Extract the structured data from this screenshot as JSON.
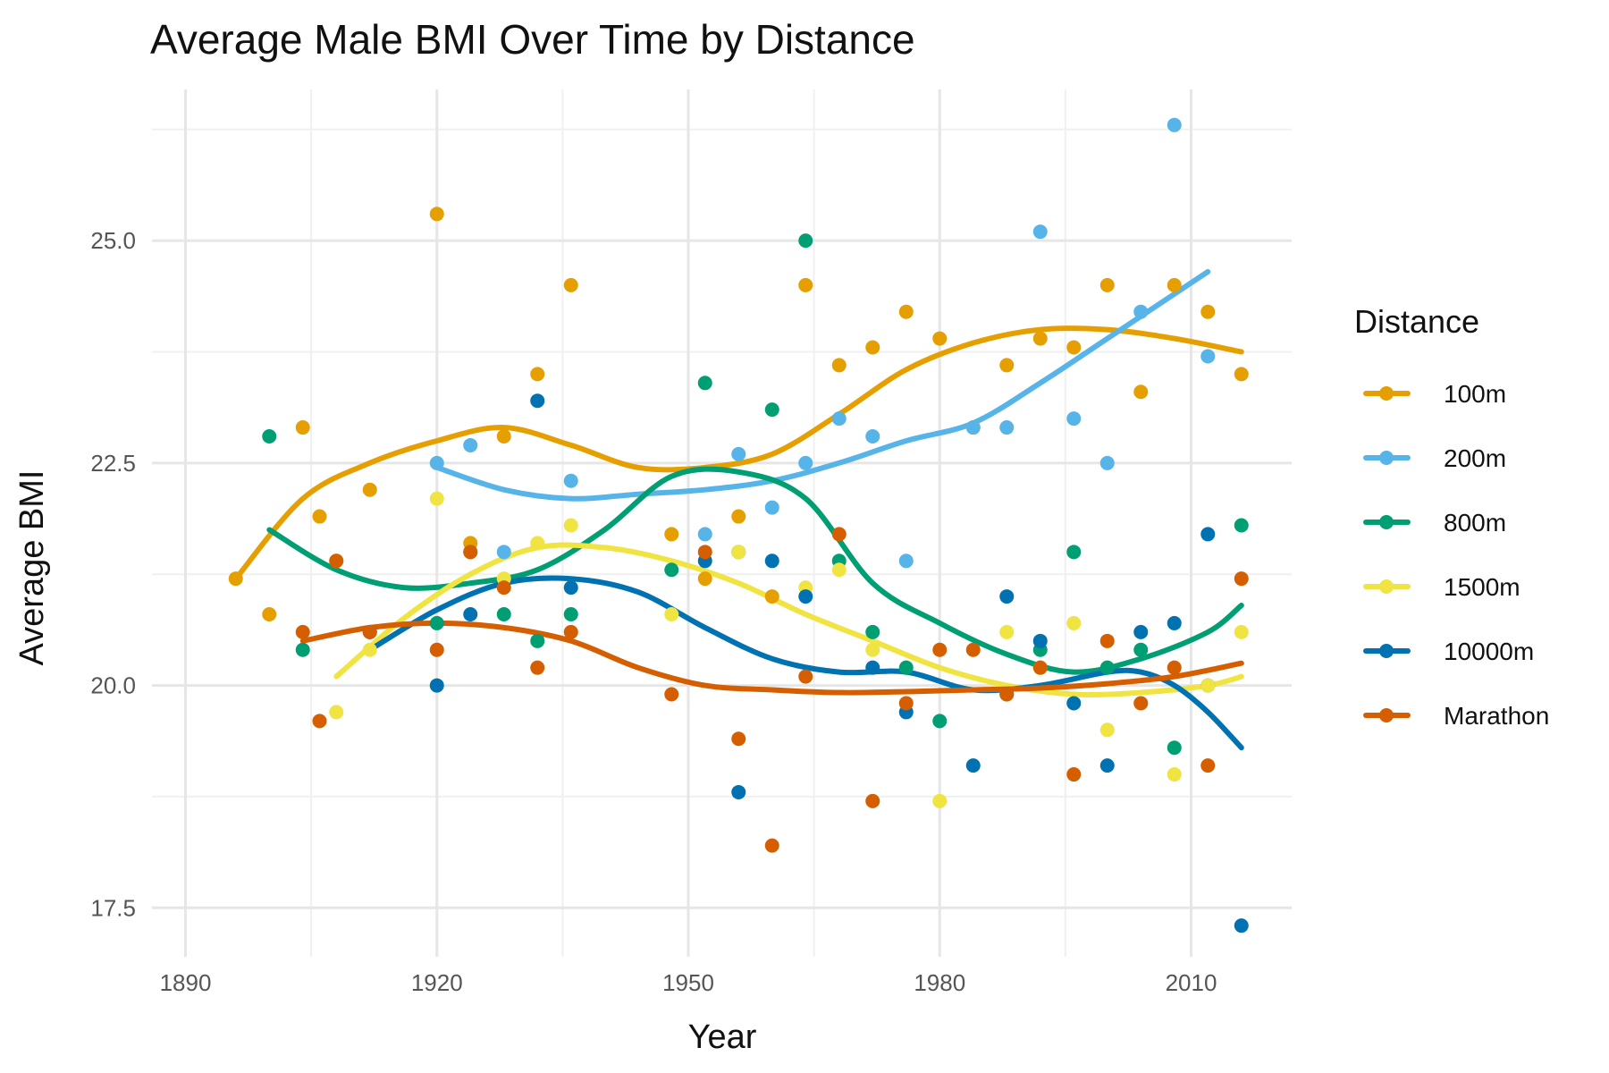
{
  "chart_data": {
    "type": "scatter",
    "title": "Average Male BMI Over Time by Distance",
    "xlabel": "Year",
    "ylabel": "Average BMI",
    "xlim": [
      1886,
      2022
    ],
    "ylim": [
      16.95,
      26.7
    ],
    "x_ticks": [
      1890,
      1920,
      1950,
      1980,
      2010
    ],
    "x_tick_labels": [
      "1890",
      "1920",
      "1950",
      "1980",
      "2010"
    ],
    "y_ticks": [
      17.5,
      20.0,
      22.5,
      25.0
    ],
    "y_tick_labels": [
      "17.5",
      "20.0",
      "22.5",
      "25.0"
    ],
    "grid": true,
    "legend": {
      "title": "Distance",
      "position": "right"
    },
    "series": [
      {
        "name": "100m",
        "color": "#E69F00",
        "points": [
          [
            1896,
            21.2
          ],
          [
            1900,
            20.8
          ],
          [
            1904,
            22.9
          ],
          [
            1906,
            21.9
          ],
          [
            1908,
            21.4
          ],
          [
            1912,
            22.2
          ],
          [
            1920,
            25.3
          ],
          [
            1924,
            21.6
          ],
          [
            1928,
            22.8
          ],
          [
            1932,
            23.5
          ],
          [
            1936,
            24.5
          ],
          [
            1948,
            21.7
          ],
          [
            1952,
            21.2
          ],
          [
            1956,
            21.9
          ],
          [
            1960,
            21.0
          ],
          [
            1964,
            24.5
          ],
          [
            1968,
            23.6
          ],
          [
            1972,
            23.8
          ],
          [
            1976,
            24.2
          ],
          [
            1980,
            23.9
          ],
          [
            1984,
            22.9
          ],
          [
            1988,
            23.6
          ],
          [
            1992,
            23.9
          ],
          [
            1996,
            23.8
          ],
          [
            2000,
            24.5
          ],
          [
            2004,
            23.3
          ],
          [
            2008,
            24.5
          ],
          [
            2012,
            24.2
          ],
          [
            2016,
            23.5
          ]
        ],
        "trend": [
          [
            1896,
            21.2
          ],
          [
            1904,
            22.1
          ],
          [
            1912,
            22.5
          ],
          [
            1920,
            22.75
          ],
          [
            1928,
            22.9
          ],
          [
            1936,
            22.7
          ],
          [
            1944,
            22.45
          ],
          [
            1952,
            22.45
          ],
          [
            1960,
            22.6
          ],
          [
            1968,
            23.05
          ],
          [
            1976,
            23.55
          ],
          [
            1984,
            23.85
          ],
          [
            1992,
            24.0
          ],
          [
            2000,
            24.0
          ],
          [
            2008,
            23.9
          ],
          [
            2016,
            23.75
          ]
        ]
      },
      {
        "name": "200m",
        "color": "#56B4E9",
        "points": [
          [
            1920,
            22.5
          ],
          [
            1924,
            22.7
          ],
          [
            1928,
            21.5
          ],
          [
            1936,
            22.3
          ],
          [
            1952,
            21.7
          ],
          [
            1956,
            22.6
          ],
          [
            1960,
            22.0
          ],
          [
            1964,
            22.5
          ],
          [
            1968,
            23.0
          ],
          [
            1972,
            22.8
          ],
          [
            1976,
            21.4
          ],
          [
            1984,
            22.9
          ],
          [
            1988,
            22.9
          ],
          [
            1992,
            25.1
          ],
          [
            1996,
            23.0
          ],
          [
            2000,
            22.5
          ],
          [
            2004,
            24.2
          ],
          [
            2008,
            26.3
          ],
          [
            2012,
            23.7
          ]
        ],
        "trend": [
          [
            1920,
            22.45
          ],
          [
            1928,
            22.2
          ],
          [
            1936,
            22.1
          ],
          [
            1944,
            22.15
          ],
          [
            1952,
            22.2
          ],
          [
            1960,
            22.3
          ],
          [
            1968,
            22.5
          ],
          [
            1976,
            22.75
          ],
          [
            1984,
            22.95
          ],
          [
            1992,
            23.4
          ],
          [
            2000,
            23.9
          ],
          [
            2008,
            24.4
          ],
          [
            2012,
            24.65
          ]
        ]
      },
      {
        "name": "800m",
        "color": "#009E73",
        "points": [
          [
            1900,
            22.8
          ],
          [
            1904,
            20.4
          ],
          [
            1920,
            20.7
          ],
          [
            1924,
            21.5
          ],
          [
            1928,
            20.8
          ],
          [
            1932,
            20.5
          ],
          [
            1936,
            20.8
          ],
          [
            1948,
            21.3
          ],
          [
            1952,
            23.4
          ],
          [
            1956,
            21.5
          ],
          [
            1960,
            23.1
          ],
          [
            1964,
            25.0
          ],
          [
            1968,
            21.4
          ],
          [
            1972,
            20.6
          ],
          [
            1976,
            20.2
          ],
          [
            1980,
            19.6
          ],
          [
            1988,
            19.9
          ],
          [
            1992,
            20.4
          ],
          [
            1996,
            21.5
          ],
          [
            2000,
            20.2
          ],
          [
            2004,
            20.4
          ],
          [
            2008,
            19.3
          ],
          [
            2012,
            20.0
          ],
          [
            2016,
            21.8
          ]
        ],
        "trend": [
          [
            1900,
            21.75
          ],
          [
            1908,
            21.3
          ],
          [
            1916,
            21.1
          ],
          [
            1924,
            21.15
          ],
          [
            1932,
            21.3
          ],
          [
            1940,
            21.75
          ],
          [
            1948,
            22.35
          ],
          [
            1956,
            22.4
          ],
          [
            1964,
            22.1
          ],
          [
            1972,
            21.15
          ],
          [
            1980,
            20.7
          ],
          [
            1988,
            20.35
          ],
          [
            1996,
            20.15
          ],
          [
            2004,
            20.3
          ],
          [
            2012,
            20.6
          ],
          [
            2016,
            20.9
          ]
        ]
      },
      {
        "name": "1500m",
        "color": "#F0E442",
        "points": [
          [
            1908,
            19.7
          ],
          [
            1912,
            20.4
          ],
          [
            1920,
            22.1
          ],
          [
            1928,
            21.2
          ],
          [
            1932,
            21.6
          ],
          [
            1936,
            21.8
          ],
          [
            1948,
            20.8
          ],
          [
            1956,
            21.5
          ],
          [
            1964,
            21.1
          ],
          [
            1968,
            21.3
          ],
          [
            1972,
            20.4
          ],
          [
            1980,
            18.7
          ],
          [
            1988,
            20.6
          ],
          [
            1992,
            20.2
          ],
          [
            1996,
            20.7
          ],
          [
            2000,
            19.5
          ],
          [
            2004,
            19.8
          ],
          [
            2008,
            19.0
          ],
          [
            2012,
            20.0
          ],
          [
            2016,
            20.6
          ]
        ],
        "trend": [
          [
            1908,
            20.1
          ],
          [
            1916,
            20.75
          ],
          [
            1924,
            21.25
          ],
          [
            1932,
            21.55
          ],
          [
            1940,
            21.55
          ],
          [
            1948,
            21.4
          ],
          [
            1956,
            21.15
          ],
          [
            1964,
            20.8
          ],
          [
            1972,
            20.5
          ],
          [
            1980,
            20.2
          ],
          [
            1988,
            20.0
          ],
          [
            1996,
            19.9
          ],
          [
            2004,
            19.92
          ],
          [
            2012,
            20.0
          ],
          [
            2016,
            20.1
          ]
        ]
      },
      {
        "name": "10000m",
        "color": "#0072B2",
        "points": [
          [
            1912,
            20.6
          ],
          [
            1920,
            20.0
          ],
          [
            1924,
            20.8
          ],
          [
            1932,
            23.2
          ],
          [
            1936,
            21.1
          ],
          [
            1952,
            21.4
          ],
          [
            1956,
            18.8
          ],
          [
            1960,
            21.4
          ],
          [
            1964,
            21.0
          ],
          [
            1972,
            20.2
          ],
          [
            1976,
            19.7
          ],
          [
            1984,
            19.1
          ],
          [
            1988,
            21.0
          ],
          [
            1992,
            20.5
          ],
          [
            1996,
            19.8
          ],
          [
            2000,
            19.1
          ],
          [
            2004,
            20.6
          ],
          [
            2008,
            20.7
          ],
          [
            2012,
            21.7
          ],
          [
            2016,
            17.3
          ]
        ],
        "trend": [
          [
            1912,
            20.4
          ],
          [
            1920,
            20.85
          ],
          [
            1928,
            21.15
          ],
          [
            1936,
            21.2
          ],
          [
            1944,
            21.05
          ],
          [
            1952,
            20.65
          ],
          [
            1960,
            20.3
          ],
          [
            1968,
            20.15
          ],
          [
            1976,
            20.15
          ],
          [
            1984,
            19.95
          ],
          [
            1992,
            20.0
          ],
          [
            2000,
            20.15
          ],
          [
            2004,
            20.15
          ],
          [
            2008,
            20.0
          ],
          [
            2012,
            19.7
          ],
          [
            2016,
            19.3
          ]
        ]
      },
      {
        "name": "Marathon",
        "color": "#D55E00",
        "points": [
          [
            1904,
            20.6
          ],
          [
            1906,
            19.6
          ],
          [
            1908,
            21.4
          ],
          [
            1912,
            20.6
          ],
          [
            1920,
            20.4
          ],
          [
            1924,
            21.5
          ],
          [
            1928,
            21.1
          ],
          [
            1932,
            20.2
          ],
          [
            1936,
            20.6
          ],
          [
            1948,
            19.9
          ],
          [
            1952,
            21.5
          ],
          [
            1956,
            19.4
          ],
          [
            1960,
            18.2
          ],
          [
            1964,
            20.1
          ],
          [
            1968,
            21.7
          ],
          [
            1972,
            18.7
          ],
          [
            1976,
            19.8
          ],
          [
            1980,
            20.4
          ],
          [
            1984,
            20.4
          ],
          [
            1988,
            19.9
          ],
          [
            1992,
            20.2
          ],
          [
            1996,
            19.0
          ],
          [
            2000,
            20.5
          ],
          [
            2004,
            19.8
          ],
          [
            2008,
            20.2
          ],
          [
            2012,
            19.1
          ],
          [
            2016,
            21.2
          ]
        ],
        "trend": [
          [
            1904,
            20.5
          ],
          [
            1912,
            20.65
          ],
          [
            1920,
            20.7
          ],
          [
            1928,
            20.65
          ],
          [
            1936,
            20.5
          ],
          [
            1944,
            20.2
          ],
          [
            1952,
            20.0
          ],
          [
            1960,
            19.95
          ],
          [
            1968,
            19.92
          ],
          [
            1976,
            19.93
          ],
          [
            1984,
            19.95
          ],
          [
            1992,
            19.97
          ],
          [
            2000,
            20.02
          ],
          [
            2008,
            20.1
          ],
          [
            2016,
            20.25
          ]
        ]
      }
    ]
  }
}
